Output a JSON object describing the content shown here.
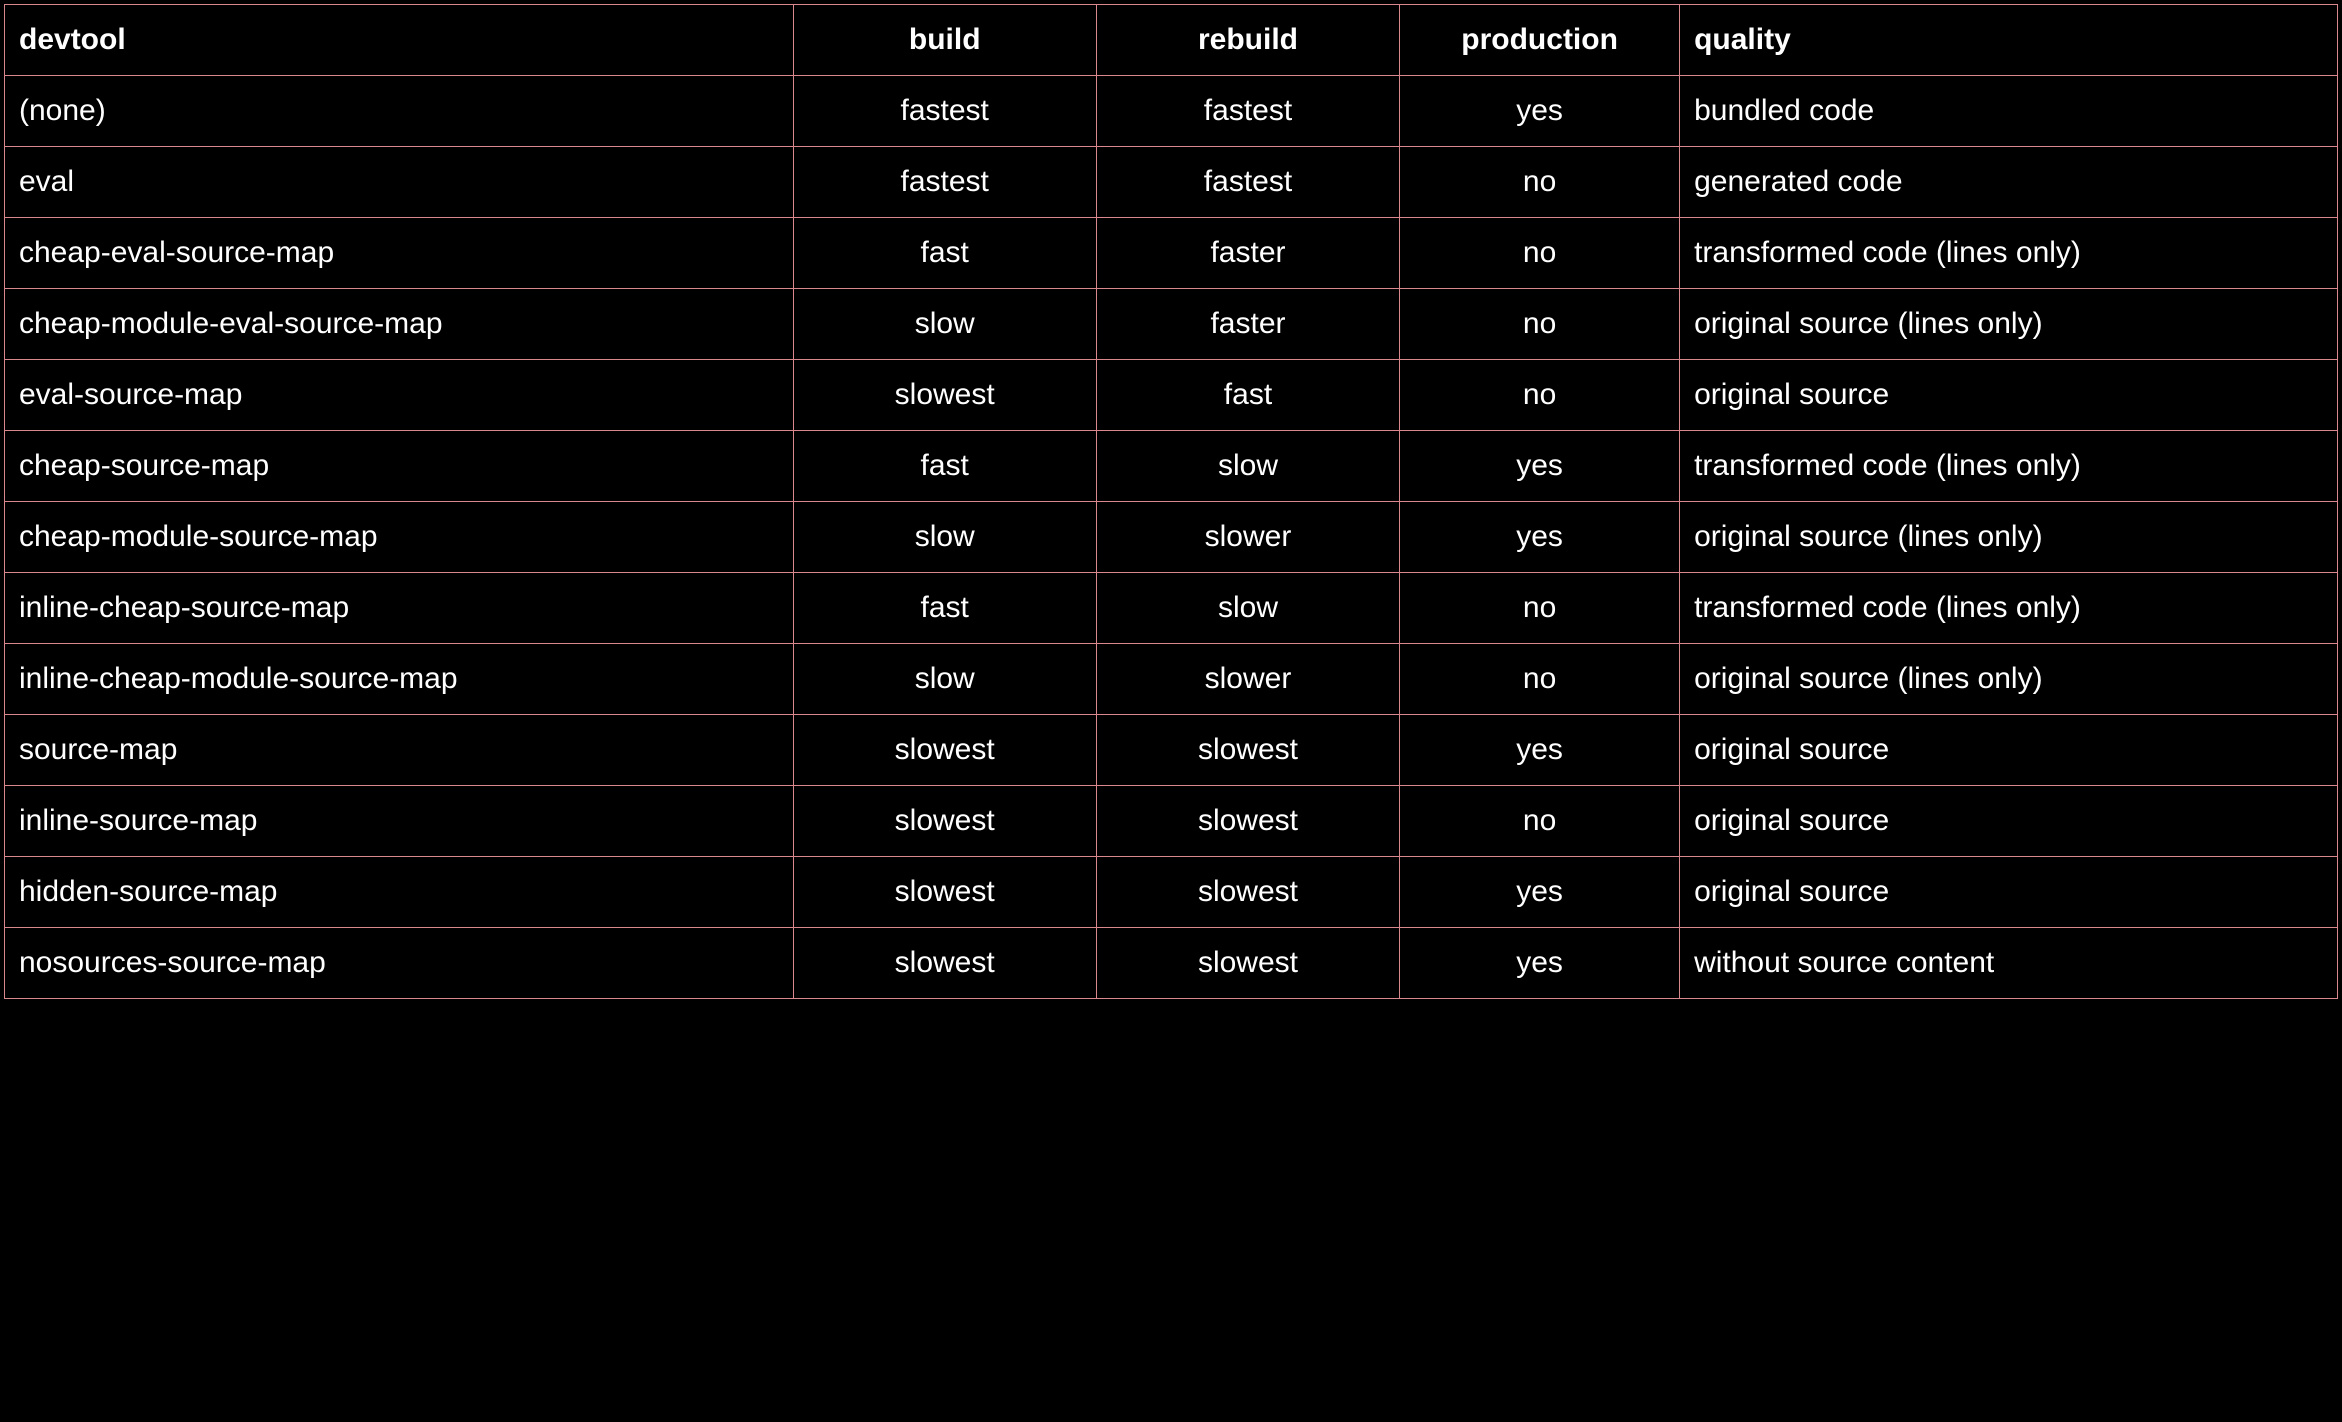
{
  "table": {
    "columns": [
      {
        "label": "devtool",
        "width": "33.8%",
        "align": "left"
      },
      {
        "label": "build",
        "width": "13%",
        "align": "center"
      },
      {
        "label": "rebuild",
        "width": "13%",
        "align": "center"
      },
      {
        "label": "production",
        "width": "12%",
        "align": "center"
      },
      {
        "label": "quality",
        "width": "28.2%",
        "align": "left"
      }
    ],
    "rows": [
      {
        "devtool": "(none)",
        "build": "fastest",
        "rebuild": "fastest",
        "production": "yes",
        "quality": "bundled code"
      },
      {
        "devtool": "eval",
        "build": "fastest",
        "rebuild": "fastest",
        "production": "no",
        "quality": "generated code"
      },
      {
        "devtool": "cheap-eval-source-map",
        "build": "fast",
        "rebuild": "faster",
        "production": "no",
        "quality": "transformed code (lines only)"
      },
      {
        "devtool": "cheap-module-eval-source-map",
        "build": "slow",
        "rebuild": "faster",
        "production": "no",
        "quality": "original source (lines only)"
      },
      {
        "devtool": "eval-source-map",
        "build": "slowest",
        "rebuild": "fast",
        "production": "no",
        "quality": "original source"
      },
      {
        "devtool": "cheap-source-map",
        "build": "fast",
        "rebuild": "slow",
        "production": "yes",
        "quality": "transformed code (lines only)"
      },
      {
        "devtool": "cheap-module-source-map",
        "build": "slow",
        "rebuild": "slower",
        "production": "yes",
        "quality": "original source (lines only)"
      },
      {
        "devtool": "inline-cheap-source-map",
        "build": "fast",
        "rebuild": "slow",
        "production": "no",
        "quality": "transformed code (lines only)"
      },
      {
        "devtool": "inline-cheap-module-source-map",
        "build": "slow",
        "rebuild": "slower",
        "production": "no",
        "quality": "original source (lines only)"
      },
      {
        "devtool": "source-map",
        "build": "slowest",
        "rebuild": "slowest",
        "production": "yes",
        "quality": "original source"
      },
      {
        "devtool": "inline-source-map",
        "build": "slowest",
        "rebuild": "slowest",
        "production": "no",
        "quality": "original source"
      },
      {
        "devtool": "hidden-source-map",
        "build": "slowest",
        "rebuild": "slowest",
        "production": "yes",
        "quality": "original source"
      },
      {
        "devtool": "nosources-source-map",
        "build": "slowest",
        "rebuild": "slowest",
        "production": "yes",
        "quality": "without source content"
      }
    ],
    "style": {
      "background_color": "#000000",
      "border_color": "#d9898e",
      "text_color": "#ffffff",
      "header_fontsize": 30,
      "cell_fontsize": 30,
      "header_fontweight": 700,
      "cell_fontweight": 400,
      "cell_padding_v": 18,
      "cell_padding_h": 14
    }
  }
}
